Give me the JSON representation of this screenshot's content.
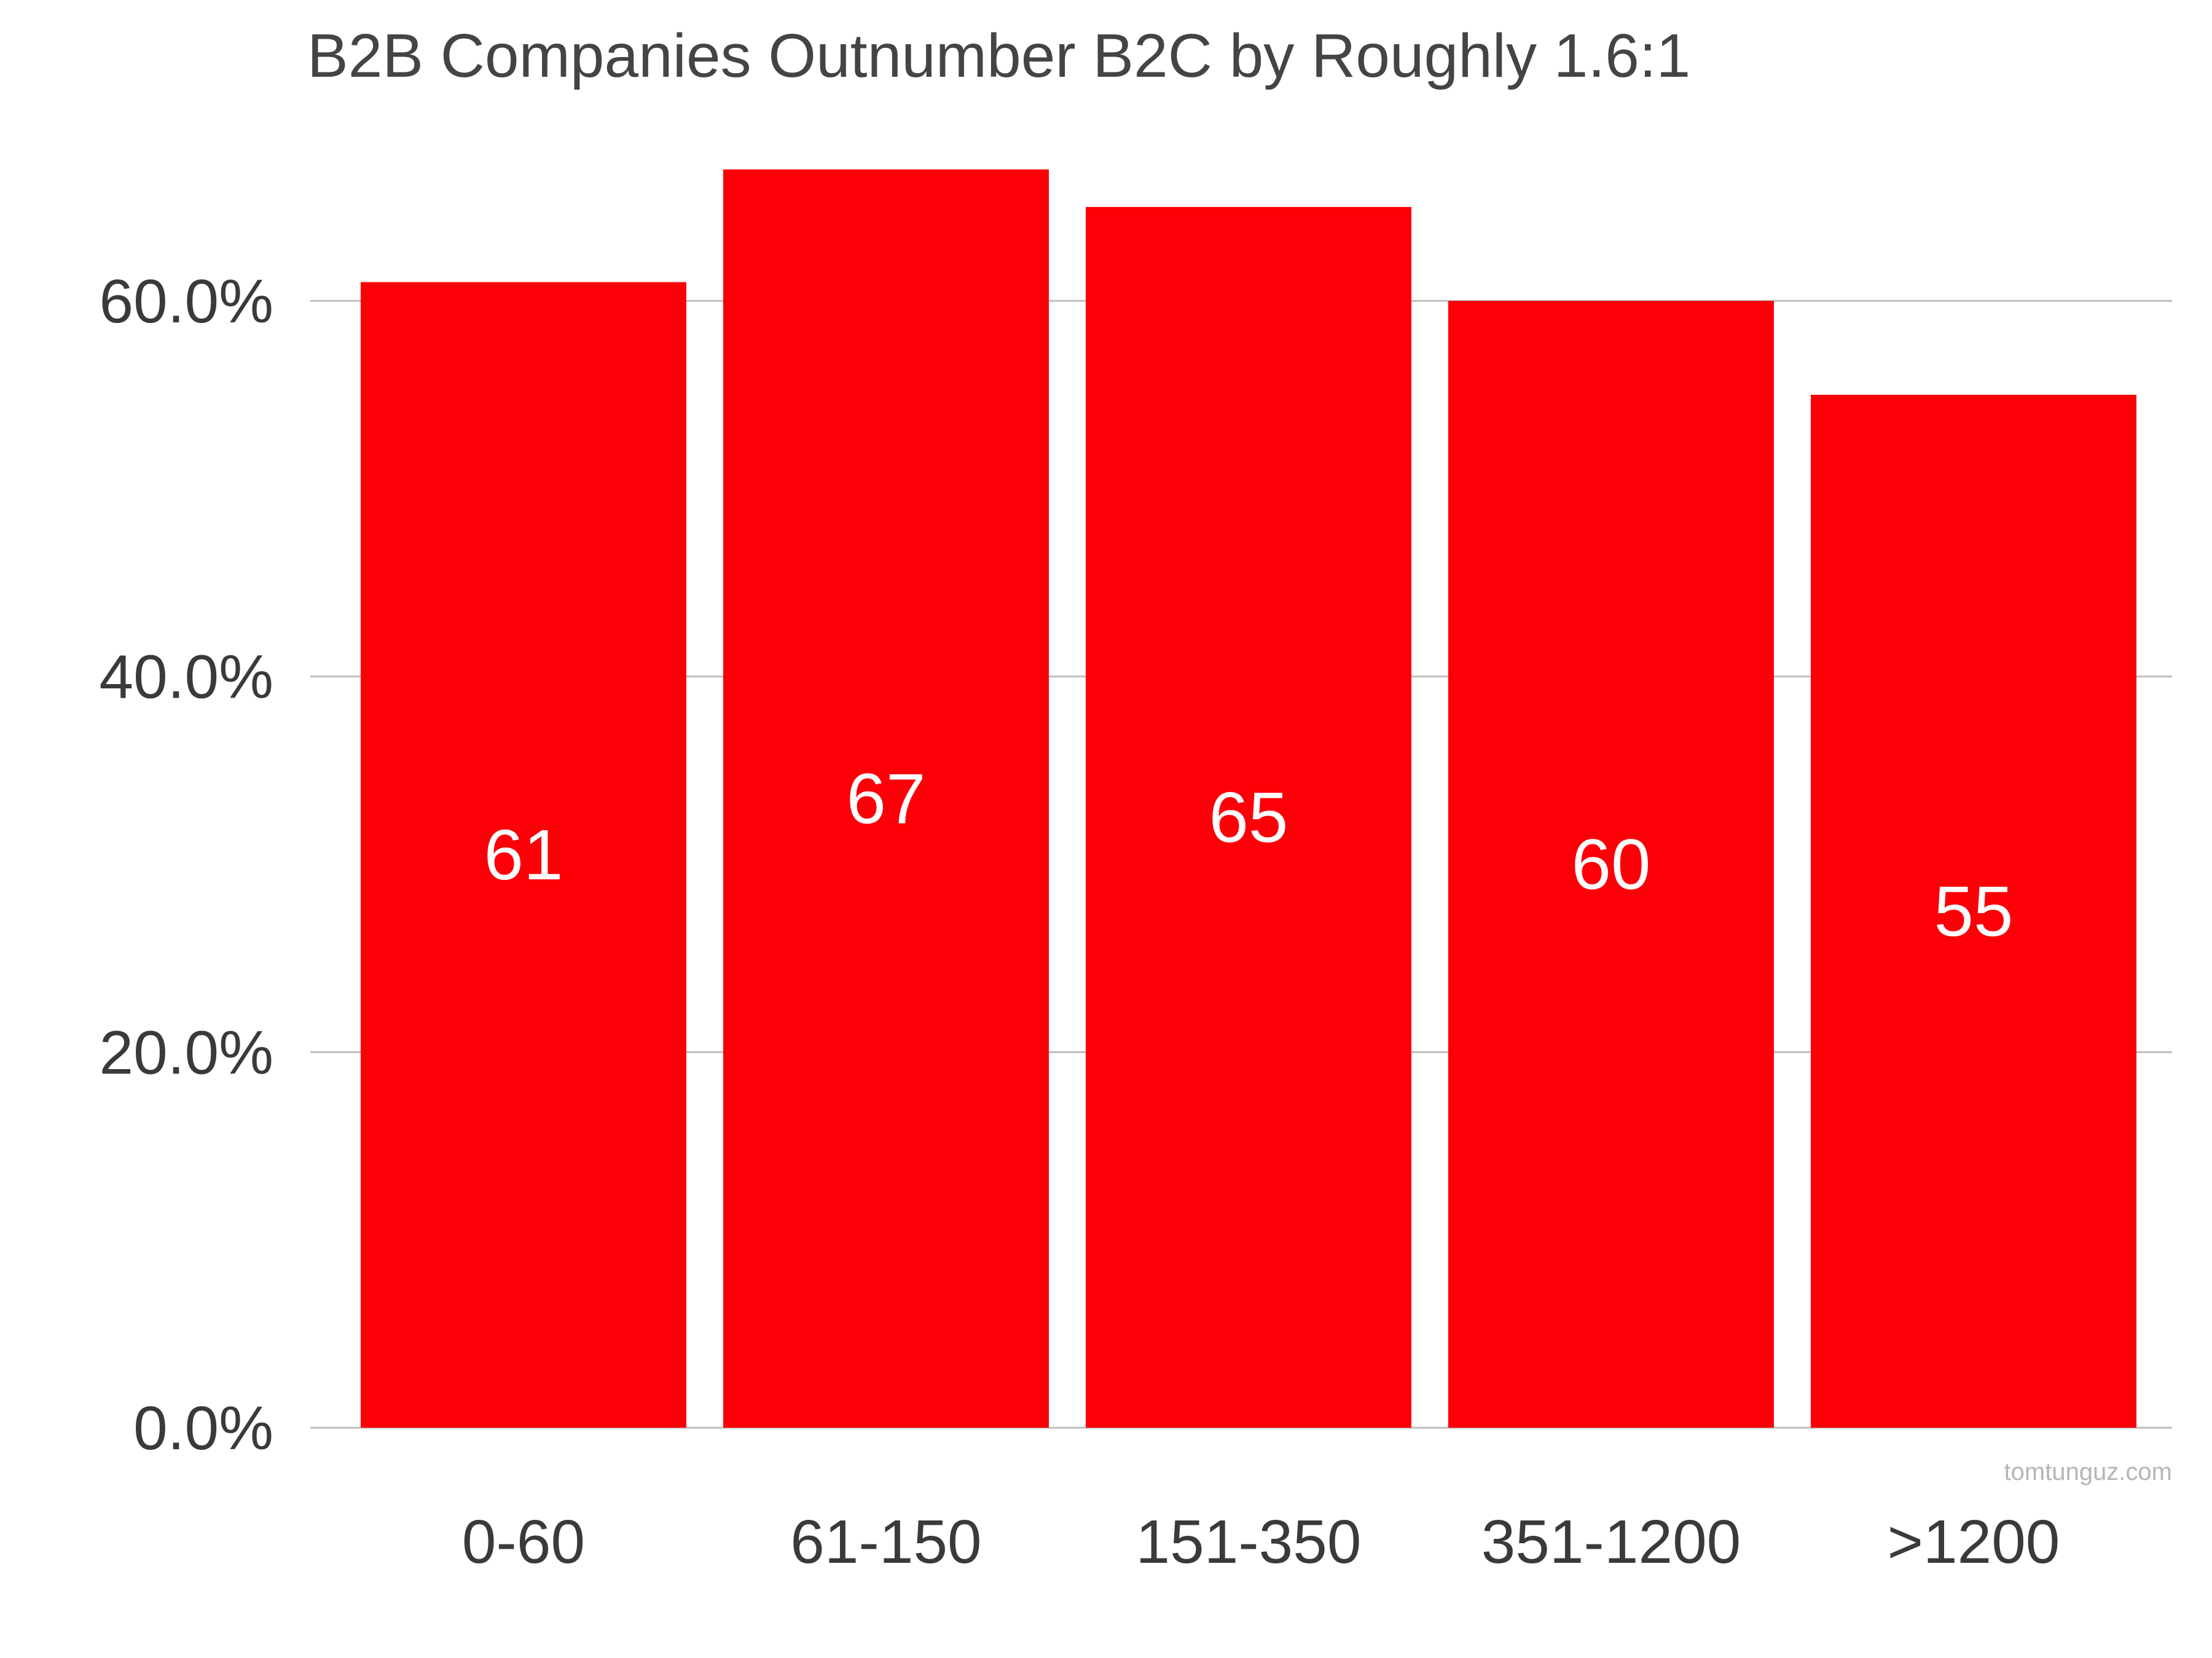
{
  "chart_data": {
    "type": "bar",
    "title": "B2B Companies Outnumber B2C by Roughly 1.6:1",
    "xlabel": "",
    "ylabel": "",
    "categories": [
      "0-60",
      "61-150",
      "151-350",
      "351-1200",
      ">1200"
    ],
    "values": [
      61,
      67,
      65,
      60,
      55
    ],
    "data_labels": [
      "61",
      "67",
      "65",
      "60",
      "55"
    ],
    "ylim": [
      0,
      60
    ],
    "yticks": [
      0,
      20,
      40,
      60
    ],
    "ytick_labels": [
      "0.0%",
      "20.0%",
      "40.0%",
      "60.0%"
    ],
    "grid": true,
    "legend": "none",
    "bar_color": "#fb0007"
  },
  "watermark": "tomtunguz.com"
}
